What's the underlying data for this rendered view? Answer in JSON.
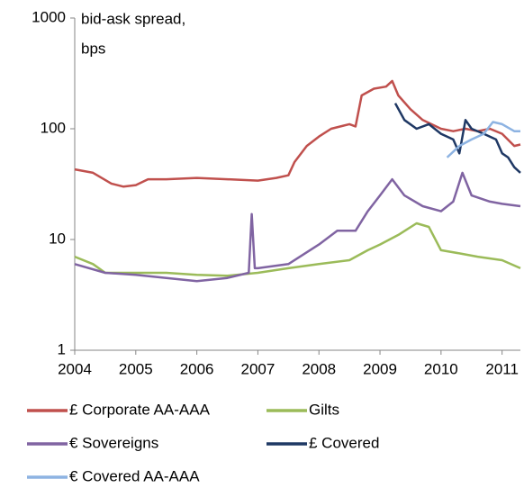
{
  "chart_data": {
    "type": "line",
    "ylabel_lines": [
      "bid-ask spread,",
      "bps"
    ],
    "log_y": true,
    "xlim": [
      2004,
      2011.3
    ],
    "xticks": [
      2004,
      2005,
      2006,
      2007,
      2008,
      2009,
      2010,
      2011
    ],
    "ylim": [
      1,
      1000
    ],
    "yticks": [
      1,
      10,
      100,
      1000
    ],
    "grid": false,
    "series": [
      {
        "name": "£ Corporate AA-AAA",
        "color": "#c0504d",
        "x": [
          2004,
          2004.3,
          2004.6,
          2004.8,
          2005,
          2005.2,
          2005.5,
          2006,
          2006.5,
          2007,
          2007.3,
          2007.5,
          2007.6,
          2007.8,
          2008,
          2008.2,
          2008.5,
          2008.6,
          2008.7,
          2008.9,
          2009.1,
          2009.2,
          2009.3,
          2009.5,
          2009.7,
          2010,
          2010.2,
          2010.4,
          2010.6,
          2010.8,
          2011,
          2011.2,
          2011.3
        ],
        "values": [
          43,
          40,
          32,
          30,
          31,
          35,
          35,
          36,
          35,
          34,
          36,
          38,
          50,
          70,
          85,
          100,
          110,
          105,
          200,
          230,
          240,
          270,
          200,
          150,
          120,
          100,
          95,
          100,
          95,
          100,
          90,
          70,
          72
        ]
      },
      {
        "name": "Gilts",
        "color": "#9bbb59",
        "x": [
          2004,
          2004.3,
          2004.5,
          2005,
          2005.5,
          2006,
          2006.5,
          2007,
          2007.5,
          2008,
          2008.5,
          2008.8,
          2009,
          2009.3,
          2009.6,
          2009.8,
          2010,
          2010.3,
          2010.6,
          2011,
          2011.3
        ],
        "values": [
          7,
          6,
          5,
          5,
          5,
          4.8,
          4.7,
          5,
          5.5,
          6,
          6.5,
          8,
          9,
          11,
          14,
          13,
          8,
          7.5,
          7,
          6.5,
          5.5
        ]
      },
      {
        "name": "€ Sovereigns",
        "color": "#8064a2",
        "x": [
          2004,
          2004.5,
          2005,
          2005.5,
          2006,
          2006.5,
          2006.85,
          2006.9,
          2006.95,
          2007,
          2007.5,
          2008,
          2008.3,
          2008.6,
          2008.8,
          2009,
          2009.2,
          2009.4,
          2009.7,
          2010,
          2010.2,
          2010.35,
          2010.5,
          2010.8,
          2011,
          2011.3
        ],
        "values": [
          6,
          5,
          4.8,
          4.5,
          4.2,
          4.5,
          5,
          17,
          5.5,
          5.5,
          6,
          9,
          12,
          12,
          18,
          25,
          35,
          25,
          20,
          18,
          22,
          40,
          25,
          22,
          21,
          20
        ]
      },
      {
        "name": "£ Covered",
        "color": "#1f3864",
        "x": [
          2009.25,
          2009.4,
          2009.6,
          2009.8,
          2010,
          2010.2,
          2010.3,
          2010.4,
          2010.5,
          2010.7,
          2010.9,
          2011,
          2011.1,
          2011.2,
          2011.3
        ],
        "values": [
          170,
          120,
          100,
          110,
          90,
          80,
          60,
          120,
          100,
          90,
          80,
          60,
          55,
          45,
          40
        ]
      },
      {
        "name": "€ Covered AA-AAA",
        "color": "#8db3e2",
        "x": [
          2010.1,
          2010.3,
          2010.5,
          2010.7,
          2010.85,
          2011,
          2011.2,
          2011.3
        ],
        "values": [
          55,
          70,
          80,
          90,
          115,
          110,
          95,
          95
        ]
      }
    ]
  }
}
